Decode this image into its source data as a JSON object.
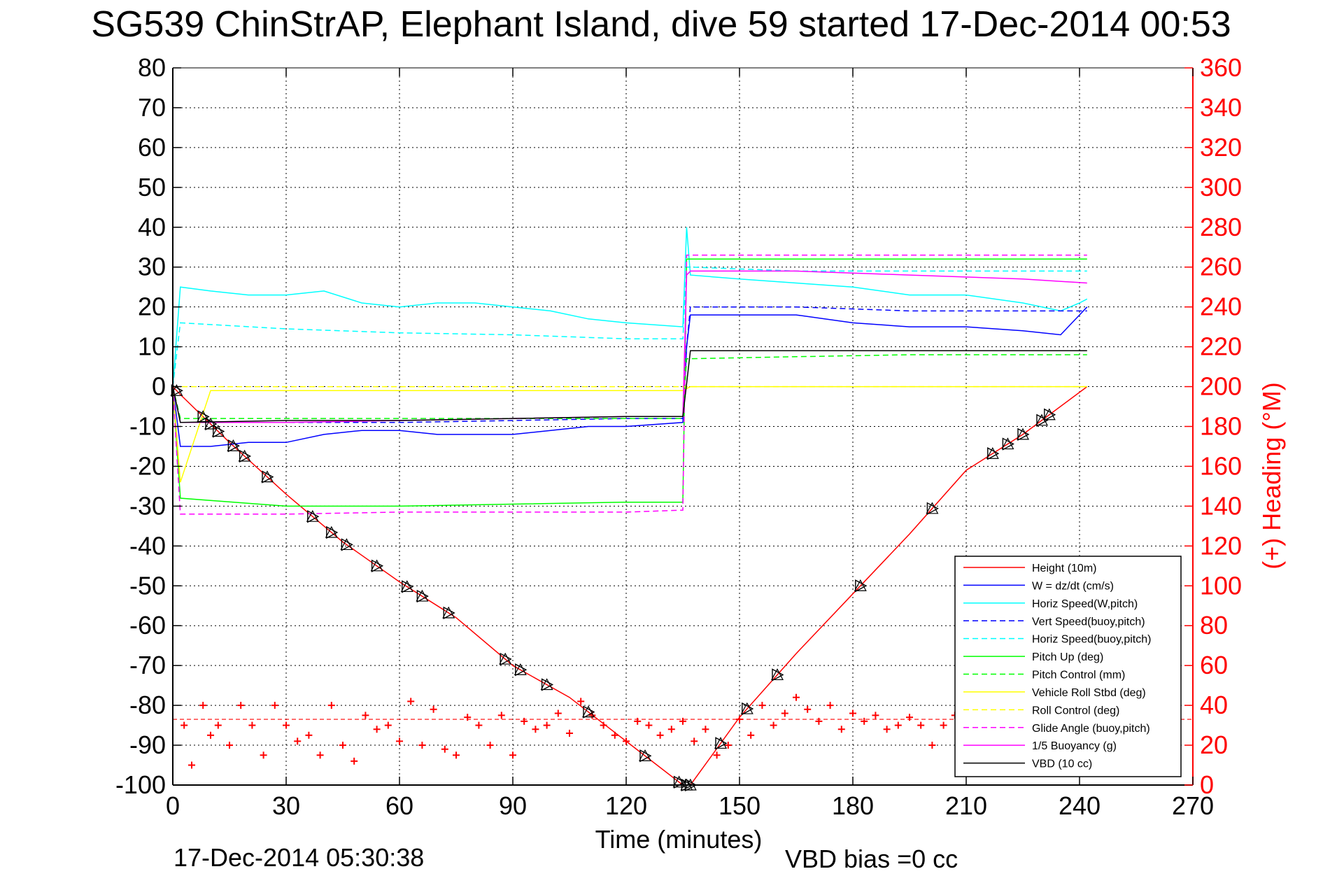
{
  "title": "SG539 ChinStrAP, Elephant Island, dive 59 started 17-Dec-2014 00:53",
  "footer": {
    "timestamp": "17-Dec-2014 05:30:38",
    "vbd_bias": "VBD bias =0 cc"
  },
  "chart_data": {
    "type": "line",
    "title": "SG539 ChinStrAP, Elephant Island, dive 59 started 17-Dec-2014 00:53",
    "xlabel": "Time (minutes)",
    "ylabel": "",
    "y2label": "(+) Heading (°M)",
    "xlim": [
      0,
      270
    ],
    "ylim": [
      -100,
      80
    ],
    "y2lim": [
      0,
      360
    ],
    "xticks": [
      "0",
      "30",
      "60",
      "90",
      "120",
      "150",
      "180",
      "210",
      "240",
      "270"
    ],
    "yticks": [
      "80",
      "70",
      "60",
      "50",
      "40",
      "30",
      "20",
      "10",
      "0",
      "-10",
      "-20",
      "-30",
      "-40",
      "-50",
      "-60",
      "-70",
      "-80",
      "-90",
      "-100"
    ],
    "y2ticks": [
      "360",
      "340",
      "320",
      "300",
      "280",
      "260",
      "240",
      "220",
      "200",
      "180",
      "160",
      "140",
      "120",
      "100",
      "80",
      "60",
      "40",
      "20",
      "0"
    ],
    "grid": true,
    "legend_position": "bottom-right",
    "colors": {
      "height": "#ff0000",
      "w": "#0000ff",
      "horiz_speed": "#00ffff",
      "pitch": "#00ff00",
      "roll": "#ffff00",
      "glide": "#ff00ff",
      "vbd": "#000000",
      "heading": "#ff0000"
    },
    "series": [
      {
        "name": "Height (10m)",
        "color": "#ff0000",
        "style": "solid",
        "x": [
          0,
          2,
          15,
          30,
          45,
          60,
          75,
          90,
          105,
          120,
          135,
          137,
          150,
          165,
          180,
          195,
          210,
          225,
          242
        ],
        "y": [
          0,
          -2,
          -14,
          -27,
          -39,
          -49,
          -58,
          -70,
          -78,
          -89,
          -100,
          -100,
          -83,
          -67,
          -52,
          -37,
          -21,
          -12,
          0
        ]
      },
      {
        "name": "W = dz/dt (cm/s)",
        "color": "#0000ff",
        "style": "solid",
        "x": [
          0,
          2,
          10,
          20,
          30,
          40,
          50,
          60,
          70,
          80,
          90,
          100,
          110,
          120,
          135,
          136,
          137,
          150,
          165,
          180,
          195,
          210,
          225,
          235,
          240,
          242
        ],
        "y": [
          0,
          -15,
          -15,
          -14,
          -14,
          -12,
          -11,
          -11,
          -12,
          -12,
          -12,
          -11,
          -10,
          -10,
          -9,
          10,
          18,
          18,
          18,
          16,
          15,
          15,
          14,
          13,
          18,
          20
        ]
      },
      {
        "name": "Horiz Speed(W,pitch)",
        "color": "#00ffff",
        "style": "solid",
        "x": [
          0,
          2,
          10,
          20,
          30,
          40,
          50,
          60,
          70,
          80,
          90,
          100,
          110,
          120,
          135,
          136,
          137,
          150,
          165,
          180,
          195,
          210,
          225,
          235,
          240,
          242
        ],
        "y": [
          0,
          25,
          24,
          23,
          23,
          24,
          21,
          20,
          21,
          21,
          20,
          19,
          17,
          16,
          15,
          40,
          28,
          27,
          26,
          25,
          23,
          23,
          21,
          19,
          21,
          22
        ]
      },
      {
        "name": "Vert Speed(buoy,pitch)",
        "color": "#0000ff",
        "style": "dashed",
        "x": [
          0,
          2,
          30,
          60,
          90,
          120,
          135,
          136,
          137,
          165,
          195,
          225,
          242
        ],
        "y": [
          0,
          -9,
          -9,
          -9,
          -8.5,
          -8,
          -8,
          10,
          20,
          20,
          19,
          19,
          19
        ]
      },
      {
        "name": "Horiz Speed(buoy,pitch)",
        "color": "#00ffff",
        "style": "dashed",
        "x": [
          0,
          2,
          30,
          60,
          90,
          120,
          135,
          136,
          137,
          165,
          195,
          225,
          242
        ],
        "y": [
          0,
          16,
          14.5,
          13.5,
          13,
          12,
          12,
          30,
          30,
          29,
          29,
          29,
          29
        ]
      },
      {
        "name": "Pitch Up (deg)",
        "color": "#00ff00",
        "style": "solid",
        "x": [
          0,
          2,
          30,
          60,
          90,
          120,
          135,
          136,
          137,
          165,
          195,
          225,
          242
        ],
        "y": [
          0,
          -28,
          -30,
          -30,
          -29.5,
          -29,
          -29,
          32,
          32,
          32,
          32,
          32,
          32
        ]
      },
      {
        "name": "Pitch Control (mm)",
        "color": "#00ff00",
        "style": "dashed",
        "x": [
          0,
          2,
          30,
          60,
          90,
          120,
          135,
          136,
          137,
          165,
          195,
          225,
          242
        ],
        "y": [
          0,
          -8,
          -8,
          -8,
          -8,
          -8,
          -8,
          7,
          7,
          7.5,
          8,
          8,
          8
        ]
      },
      {
        "name": "Vehicle Roll Stbd (deg)",
        "color": "#ffff00",
        "style": "solid",
        "x": [
          0,
          2,
          10,
          30,
          60,
          90,
          120,
          135,
          137,
          165,
          195,
          225,
          242
        ],
        "y": [
          0,
          -24,
          -1,
          -1,
          -1,
          -1,
          -1,
          -1,
          0,
          0,
          0,
          0,
          0
        ]
      },
      {
        "name": "Roll Control (deg)",
        "color": "#ffff00",
        "style": "dashed",
        "x": [
          0,
          2,
          30,
          60,
          90,
          120,
          135,
          137,
          165,
          195,
          225,
          242
        ],
        "y": [
          0,
          0,
          0,
          0,
          0,
          0,
          0,
          0,
          0,
          0,
          0,
          0
        ]
      },
      {
        "name": "Glide Angle (buoy,pitch)",
        "color": "#ff00ff",
        "style": "dashed",
        "x": [
          0,
          2,
          30,
          60,
          90,
          120,
          135,
          136,
          137,
          165,
          195,
          225,
          242
        ],
        "y": [
          0,
          -32,
          -32,
          -31.5,
          -31.5,
          -31.5,
          -31,
          33,
          33,
          33,
          33,
          33,
          33
        ]
      },
      {
        "name": "1/5 Buoyancy (g)",
        "color": "#ff00ff",
        "style": "solid",
        "x": [
          0,
          2,
          30,
          60,
          90,
          120,
          135,
          136,
          137,
          165,
          195,
          225,
          242
        ],
        "y": [
          0,
          -9,
          -9,
          -8.5,
          -8,
          -7.5,
          -7.5,
          28,
          29,
          29,
          28,
          27,
          26
        ]
      },
      {
        "name": "VBD (10 cc)",
        "color": "#000000",
        "style": "solid",
        "x": [
          0,
          2,
          30,
          60,
          90,
          120,
          135,
          137,
          165,
          195,
          225,
          242
        ],
        "y": [
          0,
          -9,
          -8.5,
          -8.5,
          -8,
          -7.5,
          -7.5,
          9,
          9,
          9,
          9,
          9
        ]
      }
    ],
    "heading": {
      "color": "#ff0000",
      "marker": "+",
      "reference_deg": 33,
      "t": [
        3,
        5,
        8,
        10,
        12,
        15,
        18,
        21,
        24,
        27,
        30,
        33,
        36,
        39,
        42,
        45,
        48,
        51,
        54,
        57,
        60,
        63,
        66,
        69,
        72,
        75,
        78,
        81,
        84,
        87,
        90,
        93,
        96,
        99,
        102,
        105,
        108,
        111,
        114,
        117,
        120,
        123,
        126,
        129,
        132,
        135,
        138,
        141,
        144,
        147,
        150,
        153,
        156,
        159,
        162,
        165,
        168,
        171,
        174,
        177,
        180,
        183,
        186,
        189,
        192,
        195,
        198,
        201,
        204,
        207
      ],
      "deg": [
        30,
        10,
        40,
        25,
        30,
        20,
        40,
        30,
        15,
        40,
        30,
        22,
        25,
        15,
        40,
        20,
        12,
        35,
        28,
        30,
        22,
        42,
        20,
        38,
        18,
        15,
        34,
        30,
        20,
        35,
        15,
        32,
        28,
        30,
        36,
        26,
        42,
        35,
        30,
        25,
        22,
        32,
        30,
        25,
        28,
        32,
        22,
        28,
        15,
        20,
        33,
        25,
        40,
        30,
        36,
        44,
        38,
        32,
        40,
        28,
        36,
        32,
        35,
        28,
        30,
        34,
        30,
        20,
        30,
        35
      ]
    },
    "markers_triangles": {
      "t": [
        1,
        8,
        10,
        12,
        16,
        19,
        25,
        37,
        42,
        46,
        54,
        62,
        66,
        73,
        88,
        92,
        99,
        110,
        125,
        134,
        136,
        137,
        145,
        152,
        160,
        182,
        201,
        217,
        221,
        225,
        230,
        232
      ]
    }
  }
}
